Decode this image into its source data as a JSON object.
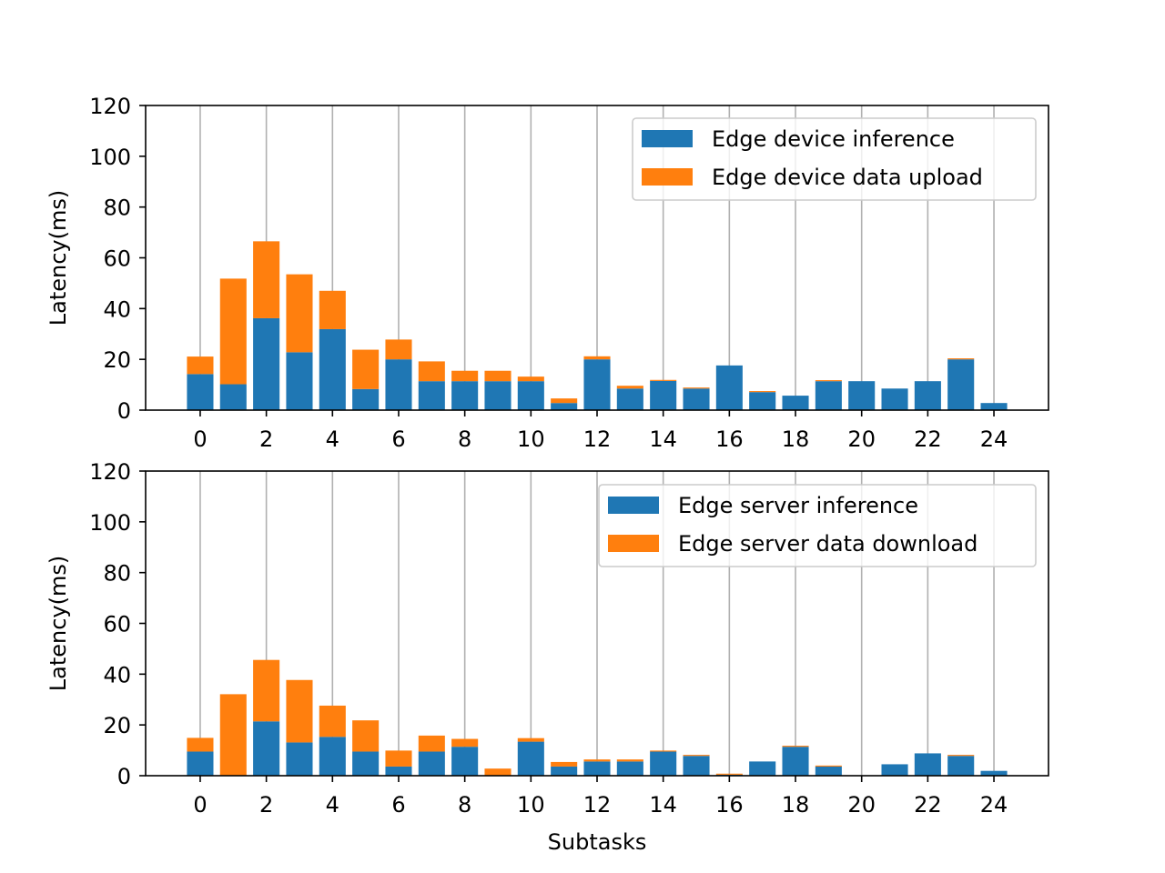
{
  "colors": {
    "inference": "#1f77b4",
    "transfer": "#ff7f0e",
    "grid": "#b0b0b0",
    "legend_border": "#cccccc"
  },
  "chart_data": [
    {
      "type": "bar",
      "stacked": true,
      "x": [
        0,
        1,
        2,
        3,
        4,
        5,
        6,
        7,
        8,
        9,
        10,
        11,
        12,
        13,
        14,
        15,
        16,
        17,
        18,
        19,
        20,
        21,
        22,
        23,
        24
      ],
      "xticks": [
        "0",
        "2",
        "4",
        "6",
        "8",
        "10",
        "12",
        "14",
        "16",
        "18",
        "20",
        "22",
        "24"
      ],
      "xticks_values": [
        0,
        2,
        4,
        6,
        8,
        10,
        12,
        14,
        16,
        18,
        20,
        22,
        24
      ],
      "xlabel": "",
      "ylabel": "Latency(ms)",
      "ylim": [
        0,
        120
      ],
      "yticks": [
        "0",
        "20",
        "40",
        "60",
        "80",
        "100",
        "120"
      ],
      "yticks_values": [
        0,
        20,
        40,
        60,
        80,
        100,
        120
      ],
      "grid": "vertical lines at even x ticks",
      "legend_position": "top-right",
      "series": [
        {
          "name": "Edge device inference",
          "color_key": "inference",
          "values": [
            14.2,
            10.2,
            36.2,
            22.8,
            31.9,
            8.3,
            20,
            11.4,
            11.4,
            11.4,
            11.4,
            2.8,
            20,
            8.5,
            11.5,
            8.5,
            17.6,
            7.1,
            5.7,
            11.4,
            11.4,
            8.5,
            11.4,
            20,
            2.8
          ]
        },
        {
          "name": "Edge device data upload",
          "color_key": "transfer",
          "values": [
            6.9,
            41.6,
            30.3,
            30.7,
            15.1,
            15.5,
            7.8,
            7.8,
            4.1,
            4.1,
            1.8,
            1.8,
            1.2,
            1.1,
            0.4,
            0.4,
            0,
            0.4,
            0,
            0.4,
            0,
            0,
            0,
            0.4,
            0
          ]
        }
      ]
    },
    {
      "type": "bar",
      "stacked": true,
      "x": [
        0,
        1,
        2,
        3,
        4,
        5,
        6,
        7,
        8,
        9,
        10,
        11,
        12,
        13,
        14,
        15,
        16,
        17,
        18,
        19,
        20,
        21,
        22,
        23,
        24
      ],
      "xticks": [
        "0",
        "2",
        "4",
        "6",
        "8",
        "10",
        "12",
        "14",
        "16",
        "18",
        "20",
        "22",
        "24"
      ],
      "xticks_values": [
        0,
        2,
        4,
        6,
        8,
        10,
        12,
        14,
        16,
        18,
        20,
        22,
        24
      ],
      "xlabel": "Subtasks",
      "ylabel": "Latency(ms)",
      "ylim": [
        0,
        120
      ],
      "yticks": [
        "0",
        "20",
        "40",
        "60",
        "80",
        "100",
        "120"
      ],
      "yticks_values": [
        0,
        20,
        40,
        60,
        80,
        100,
        120
      ],
      "grid": "vertical lines at even x ticks",
      "legend_position": "top-right",
      "series": [
        {
          "name": "Edge server inference",
          "color_key": "inference",
          "values": [
            9.5,
            0,
            21.4,
            13.1,
            15.3,
            9.5,
            3.6,
            9.5,
            11.4,
            0,
            13.4,
            3.6,
            5.6,
            5.6,
            9.5,
            7.8,
            0.4,
            5.6,
            11.4,
            3.6,
            0,
            4.5,
            8.8,
            7.8,
            1.9
          ]
        },
        {
          "name": "Edge server data download",
          "color_key": "transfer",
          "values": [
            5.4,
            32.1,
            24.2,
            24.6,
            12.3,
            12.3,
            6.3,
            6.3,
            3.1,
            2.8,
            1.4,
            1.8,
            0.8,
            0.8,
            0.4,
            0.4,
            0.4,
            0,
            0.4,
            0.4,
            0,
            0,
            0,
            0.4,
            0
          ]
        }
      ]
    }
  ]
}
